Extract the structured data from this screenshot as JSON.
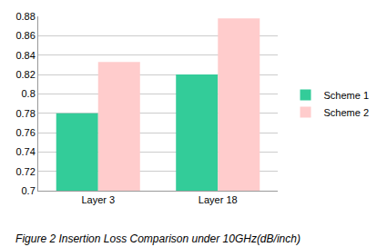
{
  "chart_data": {
    "type": "bar",
    "title": "Figure 2 Insertion Loss Comparison under 10GHz(dB/inch)",
    "categories": [
      "Layer 3",
      "Layer 18"
    ],
    "series": [
      {
        "name": "Scheme 1",
        "color": "#33cc99",
        "values": [
          0.78,
          0.82
        ]
      },
      {
        "name": "Scheme 2",
        "color": "#ffcccc",
        "values": [
          0.833,
          0.878
        ]
      }
    ],
    "ylim": [
      0.7,
      0.88
    ],
    "yticks": [
      0.7,
      0.72,
      0.74,
      0.76,
      0.78,
      0.8,
      0.82,
      0.84,
      0.86,
      0.88
    ],
    "grid": true,
    "legend": "right"
  }
}
